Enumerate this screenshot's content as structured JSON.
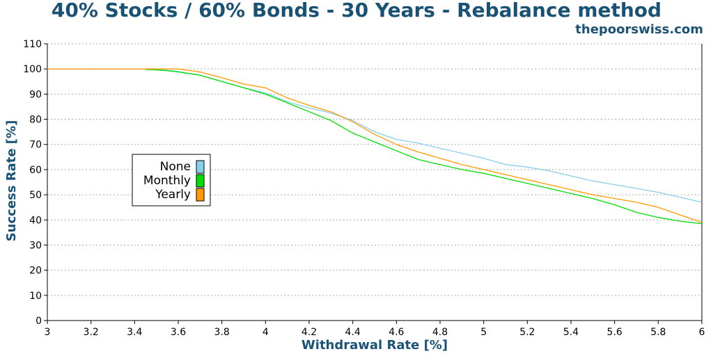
{
  "chart_data": {
    "type": "line",
    "title": "40% Stocks / 60% Bonds - 30 Years - Rebalance method",
    "watermark": "thepoorswiss.com",
    "xlabel": "Withdrawal Rate [%]",
    "ylabel": "Success Rate [%]",
    "xlim": [
      3,
      6
    ],
    "ylim": [
      0,
      110
    ],
    "x_ticks": [
      "3",
      "3.2",
      "3.4",
      "3.6",
      "3.8",
      "4",
      "4.2",
      "4.4",
      "4.6",
      "4.8",
      "5",
      "5.2",
      "5.4",
      "5.6",
      "5.8",
      "6"
    ],
    "y_ticks": [
      "0",
      "10",
      "20",
      "30",
      "40",
      "50",
      "60",
      "70",
      "80",
      "90",
      "100",
      "110"
    ],
    "grid": "horizontal-dotted",
    "legend_placement": "center-left",
    "series": [
      {
        "name": "None",
        "color": "#87ceeb",
        "points": [
          [
            3.0,
            100
          ],
          [
            3.45,
            100
          ],
          [
            3.5,
            99.8
          ],
          [
            3.55,
            99.5
          ],
          [
            3.6,
            99
          ],
          [
            3.7,
            97.5
          ],
          [
            3.8,
            95
          ],
          [
            3.9,
            92.5
          ],
          [
            4.0,
            90.5
          ],
          [
            4.1,
            87
          ],
          [
            4.2,
            84.5
          ],
          [
            4.3,
            82.5
          ],
          [
            4.4,
            79.5
          ],
          [
            4.5,
            75
          ],
          [
            4.6,
            72
          ],
          [
            4.7,
            70.5
          ],
          [
            4.8,
            68.5
          ],
          [
            4.9,
            66.5
          ],
          [
            5.0,
            64.5
          ],
          [
            5.1,
            62
          ],
          [
            5.2,
            61
          ],
          [
            5.3,
            59.5
          ],
          [
            5.4,
            57.5
          ],
          [
            5.5,
            55.5
          ],
          [
            5.6,
            54
          ],
          [
            5.7,
            52.5
          ],
          [
            5.8,
            51
          ],
          [
            5.9,
            49
          ],
          [
            6.0,
            47
          ]
        ]
      },
      {
        "name": "Monthly",
        "color": "#00dd00",
        "points": [
          [
            3.45,
            99.8
          ],
          [
            3.5,
            99.6
          ],
          [
            3.55,
            99.3
          ],
          [
            3.6,
            98.8
          ],
          [
            3.7,
            97.5
          ],
          [
            3.8,
            95
          ],
          [
            3.9,
            92.5
          ],
          [
            4.0,
            90
          ],
          [
            4.1,
            86.5
          ],
          [
            4.2,
            83
          ],
          [
            4.3,
            79.5
          ],
          [
            4.4,
            74.5
          ],
          [
            4.5,
            71
          ],
          [
            4.6,
            67.5
          ],
          [
            4.7,
            64
          ],
          [
            4.8,
            62
          ],
          [
            4.9,
            60
          ],
          [
            5.0,
            58.5
          ],
          [
            5.1,
            56.5
          ],
          [
            5.2,
            54.5
          ],
          [
            5.3,
            52.5
          ],
          [
            5.4,
            50.5
          ],
          [
            5.5,
            48.5
          ],
          [
            5.6,
            46
          ],
          [
            5.7,
            43
          ],
          [
            5.8,
            41
          ],
          [
            5.9,
            39.5
          ],
          [
            6.0,
            38.5
          ]
        ]
      },
      {
        "name": "Yearly",
        "color": "#ff9900",
        "points": [
          [
            3.0,
            100
          ],
          [
            3.6,
            100
          ],
          [
            3.7,
            98.8
          ],
          [
            3.8,
            96.5
          ],
          [
            3.9,
            94
          ],
          [
            4.0,
            92.5
          ],
          [
            4.1,
            88.5
          ],
          [
            4.2,
            85.5
          ],
          [
            4.3,
            83
          ],
          [
            4.4,
            79
          ],
          [
            4.5,
            74
          ],
          [
            4.6,
            70
          ],
          [
            4.7,
            67
          ],
          [
            4.8,
            64.5
          ],
          [
            4.9,
            62
          ],
          [
            5.0,
            60
          ],
          [
            5.1,
            58
          ],
          [
            5.2,
            56
          ],
          [
            5.3,
            54
          ],
          [
            5.4,
            52
          ],
          [
            5.5,
            50
          ],
          [
            5.6,
            48.5
          ],
          [
            5.7,
            47
          ],
          [
            5.8,
            45
          ],
          [
            5.9,
            42
          ],
          [
            6.0,
            39
          ]
        ]
      }
    ]
  }
}
